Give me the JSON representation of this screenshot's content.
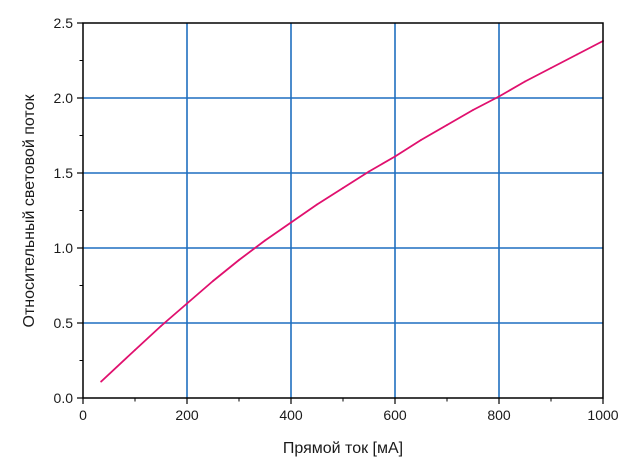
{
  "chart_data": {
    "type": "line",
    "xlabel": "Прямой ток [мА]",
    "ylabel": "Относительный световой поток",
    "xlim": [
      0,
      1000
    ],
    "ylim": [
      0,
      2.5
    ],
    "xticks": [
      0,
      200,
      400,
      600,
      800,
      1000
    ],
    "xtick_labels": [
      "0",
      "200",
      "400",
      "600",
      "800",
      "1000"
    ],
    "yticks": [
      0,
      0.5,
      1.0,
      1.5,
      2.0,
      2.5
    ],
    "ytick_labels": [
      "0.0",
      "0.5",
      "1.0",
      "1.5",
      "2.0",
      "2.5"
    ],
    "grid": true,
    "colors": {
      "series": "#e0106e",
      "grid": "#1f6fc0",
      "axis": "#000000"
    },
    "series": [
      {
        "x": [
          35,
          100,
          150,
          200,
          250,
          300,
          350,
          400,
          450,
          500,
          550,
          600,
          650,
          700,
          750,
          800,
          850,
          900,
          950,
          1000
        ],
        "values": [
          0.11,
          0.32,
          0.48,
          0.63,
          0.78,
          0.92,
          1.05,
          1.17,
          1.29,
          1.4,
          1.51,
          1.61,
          1.72,
          1.82,
          1.92,
          2.01,
          2.11,
          2.2,
          2.29,
          2.38
        ]
      }
    ]
  }
}
